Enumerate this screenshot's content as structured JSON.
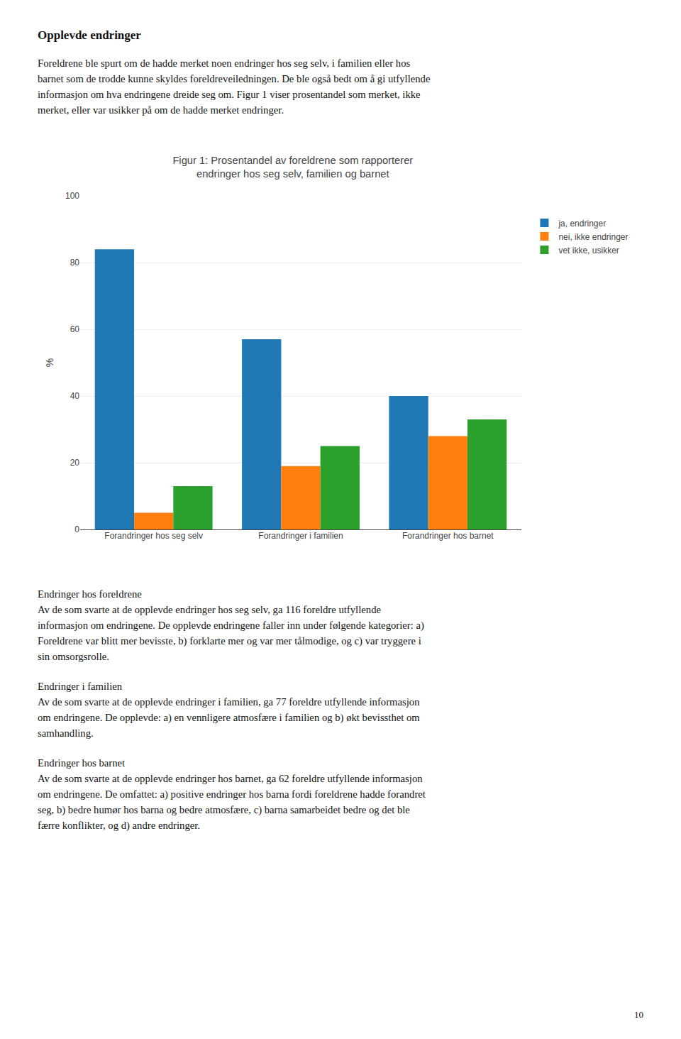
{
  "chart_data": {
    "type": "bar",
    "title": "Figur 1: Prosentandel av foreldrene som rapporterer\nendringer hos seg selv, familien og barnet",
    "y_label": "%",
    "categories": [
      "Forandringer hos seg selv",
      "Forandringer i familien",
      "Forandringer hos barnet"
    ],
    "series": [
      {
        "name": "ja, endringer",
        "values": [
          84,
          57,
          40
        ]
      },
      {
        "name": "nei, ikke endringer",
        "values": [
          5,
          19,
          28
        ]
      },
      {
        "name": "vet ikke, usikker",
        "values": [
          13,
          25,
          33
        ]
      }
    ],
    "ylim": [
      0,
      100
    ],
    "yticks": [
      0,
      20,
      40,
      60,
      80,
      100
    ],
    "grid": true,
    "legend": "right"
  },
  "page_text": {
    "heading": "Opplevde endringer",
    "paragraph": [
      "Foreldrene ble spurt om de hadde merket noen endringer hos seg selv, i familien eller hos",
      "barnet som de trodde kunne skyldes foreldreveiledningen. De ble også bedt om å gi utfyllende",
      "informasjon om hva endringene dreide seg om. Figur 1 viser prosentandel som merket, ikke",
      "merket, eller var usikker på om de hadde merket endringer."
    ],
    "sections": [
      {
        "heading": "Endringer hos foreldrene",
        "lines": [
          "Av de som svarte at de opplevde endringer hos seg selv, ga 116 foreldre utfyllende",
          "informasjon om endringene. De opplevde endringene faller inn under følgende kategorier: a)",
          "Foreldrene var blitt mer bevisste, b) forklarte mer og var mer tålmodige, og c) var tryggere i",
          "sin omsorgsrolle."
        ]
      },
      {
        "heading": "Endringer i familien",
        "lines": [
          "Av de som svarte at de opplevde endringer i familien, ga 77 foreldre utfyllende informasjon",
          "om endringene. De opplevde: a) en vennligere atmosfære i familien og b) økt bevissthet om",
          "samhandling."
        ]
      },
      {
        "heading": "Endringer hos barnet",
        "lines": [
          "Av de som svarte at de opplevde endringer hos barnet, ga 62 foreldre utfyllende informasjon",
          "om endringene. De omfattet: a) positive endringer hos barna fordi foreldrene hadde forandret",
          "seg, b) bedre humør hos barna og bedre atmosfære, c) barna samarbeidet bedre og det ble",
          "færre konflikter, og d) andre endringer."
        ]
      }
    ],
    "page_number": "10"
  }
}
